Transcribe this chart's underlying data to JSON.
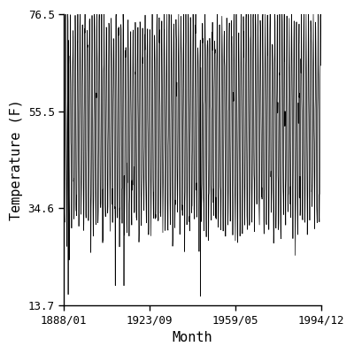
{
  "title": "",
  "xlabel": "Month",
  "ylabel": "Temperature (F)",
  "start_year": 1888,
  "start_month": 1,
  "end_year": 1994,
  "end_month": 12,
  "yticks": [
    13.7,
    34.6,
    55.5,
    76.5
  ],
  "xtick_labels": [
    "1888/01",
    "1923/09",
    "1959/05",
    "1994/12"
  ],
  "xtick_months_from_start": [
    0,
    428,
    856,
    1283
  ],
  "ylim": [
    13.7,
    76.5
  ],
  "xlim_end": 1283,
  "line_color": "#000000",
  "line_width": 0.5,
  "bg_color": "#ffffff",
  "mean_temp": 53.0,
  "amplitude": 21.5,
  "noise_std": 3.5,
  "seed": 7
}
